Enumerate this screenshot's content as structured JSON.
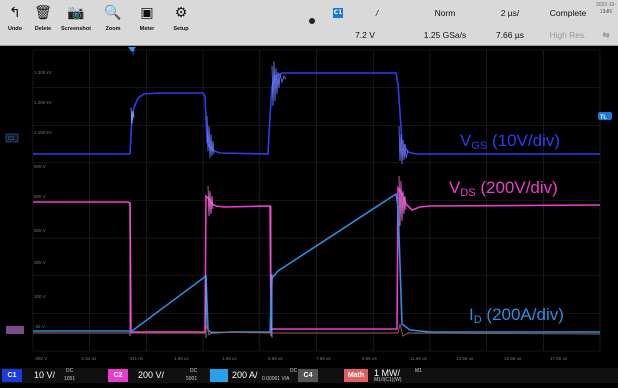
{
  "toolbar": {
    "buttons": [
      {
        "label": "Undo",
        "icon": "undo-icon",
        "glyph": "↰"
      },
      {
        "label": "Delete",
        "icon": "trash-icon",
        "glyph": "🗑"
      },
      {
        "label": "Screenshot",
        "icon": "camera-icon",
        "glyph": "📷"
      },
      {
        "label": "Zoom",
        "icon": "zoom-icon",
        "glyph": "🔍"
      },
      {
        "label": "Meter",
        "icon": "meter-icon",
        "glyph": "▣"
      },
      {
        "label": "Setup",
        "icon": "gear-icon",
        "glyph": "⚙"
      }
    ],
    "trigger_channel": "C1",
    "trigger_slope": "/",
    "trigger_level": "7.2 V",
    "trigger_mode": "Norm",
    "sample_rate": "1.25 GSa/s",
    "time_div": "2 µs/",
    "position": "7.66 µs",
    "acq_status": "Complete",
    "acq_mode": "High Res.",
    "date": "2022-10-14",
    "time": "13:26"
  },
  "screen": {
    "trigger_marker": "T",
    "tl_marker": "TL",
    "ch1_marker": "C1",
    "left_axis_labels": [
      "1.300 kV",
      "1.200 kV",
      "1.100 kV",
      "900 V",
      "800 V",
      "500 V",
      "300 V",
      "100 V",
      "-32 V"
    ],
    "bottom_axis_labels": [
      "-252 V",
      "-2.34 us",
      "-341 ns",
      "1.66 us",
      "3.66 us",
      "5.66 us",
      "7.66 us",
      "9.66 us",
      "11.66 us",
      "13.66 us",
      "15.66 us",
      "17.66 us"
    ],
    "labels": {
      "vgs_main": "V",
      "vgs_sub": "GS",
      "vgs_scale": " (10V/div)",
      "vds_main": "V",
      "vds_sub": "DS",
      "vds_scale": " (200V/div)",
      "id_main": "I",
      "id_sub": "D",
      "id_scale": " (200A/div)"
    },
    "colors": {
      "vgs": "#2a3ff0",
      "vds": "#f03ccf",
      "id": "#2a8fe0",
      "m1": "#e04444"
    }
  },
  "channels": {
    "c1": {
      "label": "C1",
      "value": "10 V/",
      "coupling": "DC",
      "extra": "1051",
      "color": "#1a3ae0"
    },
    "c2": {
      "label": "C2",
      "value": "200 V/",
      "coupling": "DC",
      "extra": "5001",
      "color": "#e83ccc"
    },
    "c3": {
      "label": "C3",
      "value": "200 A/",
      "coupling": "DC",
      "extra": "0.00061 V/A",
      "color": "#2aa0e8"
    },
    "c4": {
      "label": "C4",
      "color": "#555"
    },
    "math": {
      "label": "Math",
      "value": "1 MW/",
      "extra": "M1",
      "sub": "M1/I(C1)(W)",
      "color": "#e06060"
    }
  }
}
